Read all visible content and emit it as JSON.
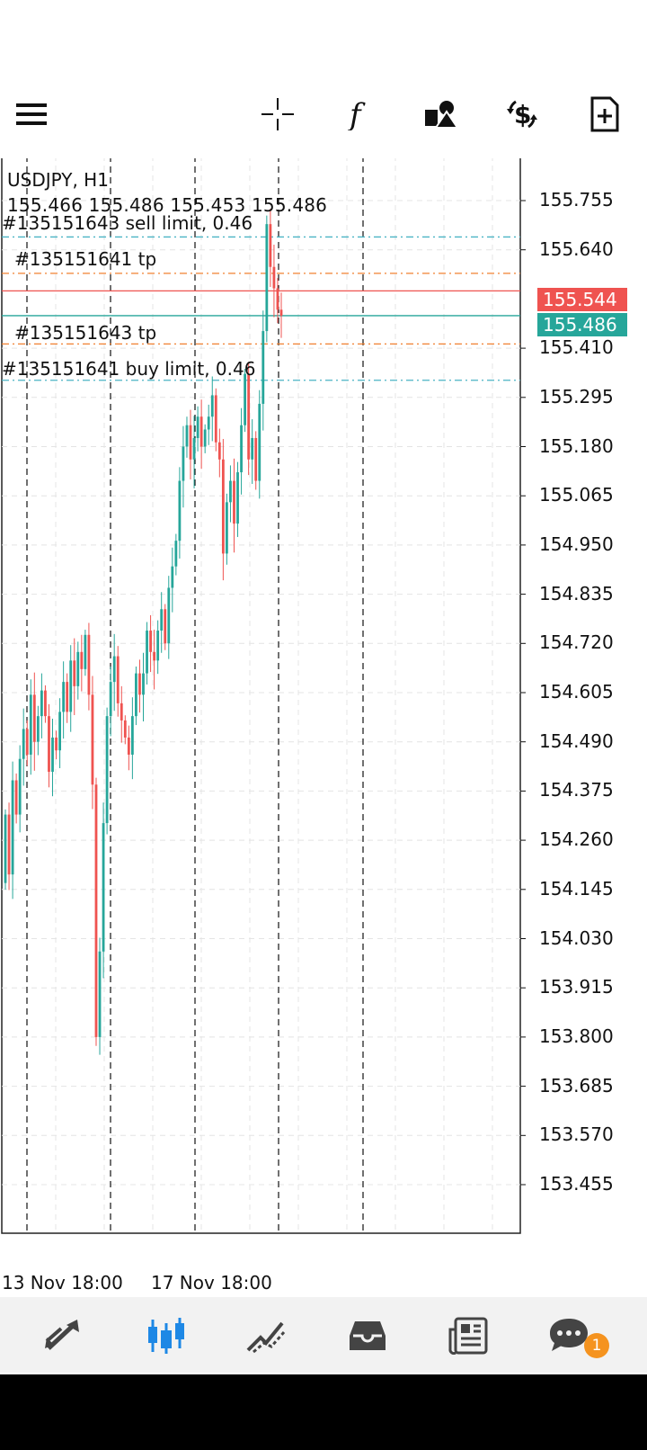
{
  "toolbar": {
    "icons": [
      "menu-icon",
      "crosshair-icon",
      "indicator-f-icon",
      "objects-icon",
      "trade-dollar-icon",
      "new-document-icon"
    ]
  },
  "header": {
    "symbol": "USDJPY, H1",
    "ohlc": "155.466 155.486 155.453 155.486"
  },
  "orders": {
    "sell_limit": "#135151643 sell limit, 0.46",
    "tp1": "#135151641 tp",
    "tp2": "#135151643 tp",
    "buy_limit": "#135151641 buy limit, 0.46"
  },
  "prices": {
    "ask": "155.544",
    "bid": "155.486"
  },
  "colors": {
    "bull": "#26a69a",
    "bear": "#ef5350",
    "ask_tag": "#ef5350",
    "bid_tag": "#26a69a",
    "order_line": "#4ab3c4",
    "tp_line": "#f08030",
    "accent": "#1e88e5"
  },
  "chart_data": {
    "type": "candlestick",
    "symbol": "USDJPY",
    "timeframe": "H1",
    "ylim": [
      153.34,
      155.84
    ],
    "y_ticks": [
      "155.755",
      "155.640",
      "155.410",
      "155.295",
      "155.180",
      "155.065",
      "154.950",
      "154.835",
      "154.720",
      "154.605",
      "154.490",
      "154.375",
      "154.260",
      "154.145",
      "154.030",
      "153.915",
      "153.800",
      "153.685",
      "153.570",
      "153.455"
    ],
    "x_ticks": [
      "13 Nov 18:00",
      "17 Nov 18:00"
    ],
    "horizontal_lines": [
      {
        "label": "#135151643 sell limit, 0.46",
        "price": 155.67,
        "style": "dash-dot",
        "color": "#4ab3c4"
      },
      {
        "label": "#135151641 tp",
        "price": 155.585,
        "style": "dash-dot",
        "color": "#f08030"
      },
      {
        "label": "#135151643 tp",
        "price": 155.42,
        "style": "dash-dot",
        "color": "#f08030"
      },
      {
        "label": "#135151641 buy limit, 0.46",
        "price": 155.335,
        "style": "dash-dot",
        "color": "#4ab3c4"
      },
      {
        "label": "ask",
        "price": 155.544,
        "style": "solid",
        "color": "#ef5350"
      },
      {
        "label": "bid",
        "price": 155.486,
        "style": "solid",
        "color": "#26a69a"
      }
    ],
    "close_series": [
      154.32,
      154.18,
      154.4,
      154.32,
      154.45,
      154.52,
      154.46,
      154.6,
      154.49,
      154.55,
      154.61,
      154.55,
      154.42,
      154.5,
      154.47,
      154.56,
      154.63,
      154.56,
      154.68,
      154.62,
      154.7,
      154.66,
      154.74,
      154.6,
      154.39,
      153.8,
      154.0,
      154.3,
      154.55,
      154.63,
      154.69,
      154.58,
      154.54,
      154.5,
      154.46,
      154.55,
      154.65,
      154.6,
      154.65,
      154.75,
      154.7,
      154.68,
      154.75,
      154.8,
      154.72,
      154.85,
      154.9,
      154.96,
      155.1,
      155.18,
      155.23,
      155.15,
      155.2,
      155.25,
      155.18,
      155.22,
      155.25,
      155.3,
      155.19,
      155.15,
      154.93,
      155.05,
      155.1,
      155.0,
      155.12,
      155.23,
      155.35,
      155.15,
      155.2,
      155.1,
      155.28,
      155.45,
      155.7,
      155.6,
      155.55,
      155.5,
      155.486
    ]
  }
}
